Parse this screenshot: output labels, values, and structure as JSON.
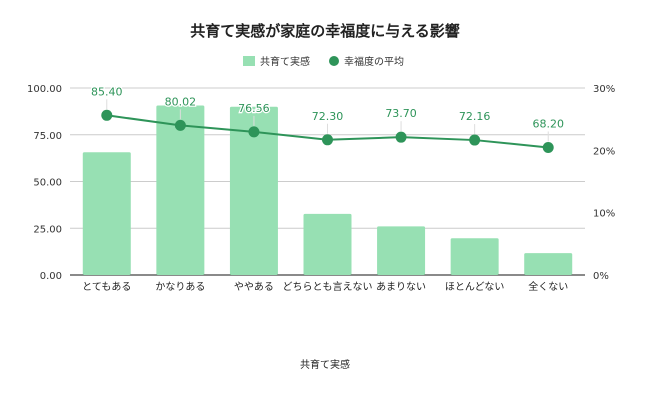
{
  "chart_data": {
    "type": "bar+line",
    "title": "共育て実感が家庭の幸福度に与える影響",
    "xlabel": "共育て実感",
    "categories": [
      "とてもある",
      "かなりある",
      "ややある",
      "どちらとも言えない",
      "あまりない",
      "ほとんどない",
      "全くない"
    ],
    "series": [
      {
        "name": "共育て実感",
        "type": "bar",
        "axis": "right",
        "unit": "%",
        "values": [
          19.7,
          27.2,
          27.0,
          9.8,
          7.8,
          5.9,
          3.5
        ],
        "color": "#97e0b3"
      },
      {
        "name": "幸福度の平均",
        "type": "line",
        "axis": "left",
        "values": [
          85.4,
          80.02,
          76.56,
          72.3,
          73.7,
          72.16,
          68.2
        ],
        "labels": [
          "85.40",
          "80.02",
          "76.56",
          "72.30",
          "73.70",
          "72.16",
          "68.20"
        ],
        "color": "#2e9459"
      }
    ],
    "left_axis": {
      "range": [
        0,
        100
      ],
      "ticks": [
        "0.00",
        "25.00",
        "50.00",
        "75.00",
        "100.00"
      ]
    },
    "right_axis": {
      "range": [
        0,
        30
      ],
      "ticks": [
        "0%",
        "10%",
        "20%",
        "30%"
      ]
    },
    "grid": true,
    "legend": "top"
  }
}
